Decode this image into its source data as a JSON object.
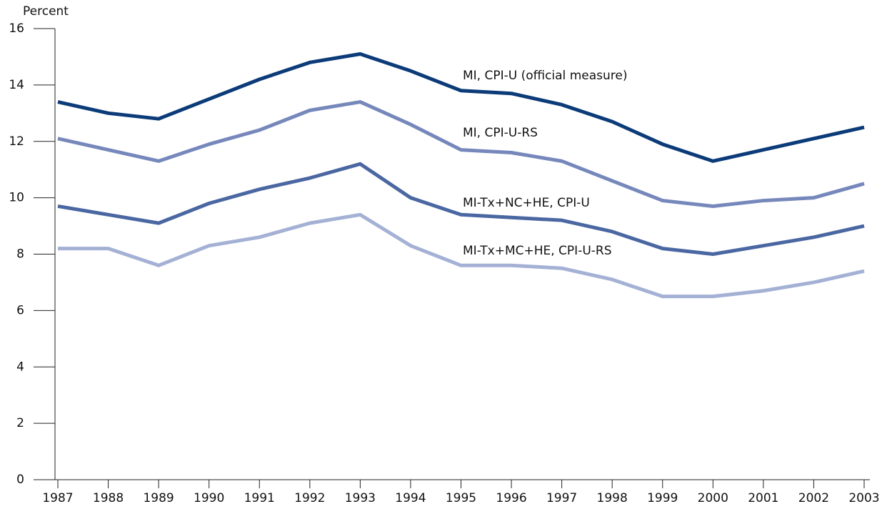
{
  "chart_data": {
    "type": "line",
    "y_label": "Percent",
    "categories": [
      "1987",
      "1988",
      "1989",
      "1990",
      "1991",
      "1992",
      "1993",
      "1994",
      "1995",
      "1996",
      "1997",
      "1998",
      "1999",
      "2000",
      "2001",
      "2002",
      "2003"
    ],
    "series": [
      {
        "name": "MI, CPI-U (official measure)",
        "color": "#0b3b78",
        "values": [
          13.4,
          13.0,
          12.8,
          13.5,
          14.2,
          14.8,
          15.1,
          14.5,
          13.8,
          13.7,
          13.3,
          12.7,
          11.9,
          11.3,
          11.7,
          12.1,
          12.5
        ]
      },
      {
        "name": "MI, CPI-U-RS",
        "color": "#7688bb",
        "values": [
          12.1,
          11.7,
          11.3,
          11.9,
          12.4,
          13.1,
          13.4,
          12.6,
          11.7,
          11.6,
          11.3,
          10.6,
          9.9,
          9.7,
          9.9,
          10.0,
          10.5
        ]
      },
      {
        "name": "MI-Tx+NC+HE, CPI-U",
        "color": "#4a67a2",
        "values": [
          9.7,
          9.4,
          9.1,
          9.8,
          10.3,
          10.7,
          11.2,
          10.0,
          9.4,
          9.3,
          9.2,
          8.8,
          8.2,
          8.0,
          8.3,
          8.6,
          9.0
        ]
      },
      {
        "name": "MI-Tx+MC+HE, CPI-U-RS",
        "color": "#a4b1d5",
        "values": [
          8.2,
          8.2,
          7.6,
          8.3,
          8.6,
          9.1,
          9.4,
          8.3,
          7.6,
          7.6,
          7.5,
          7.1,
          6.5,
          6.5,
          6.7,
          7.0,
          7.4
        ]
      }
    ],
    "ylim": [
      0,
      16
    ],
    "yticks": [
      0,
      2,
      4,
      6,
      8,
      10,
      12,
      14,
      16
    ]
  }
}
